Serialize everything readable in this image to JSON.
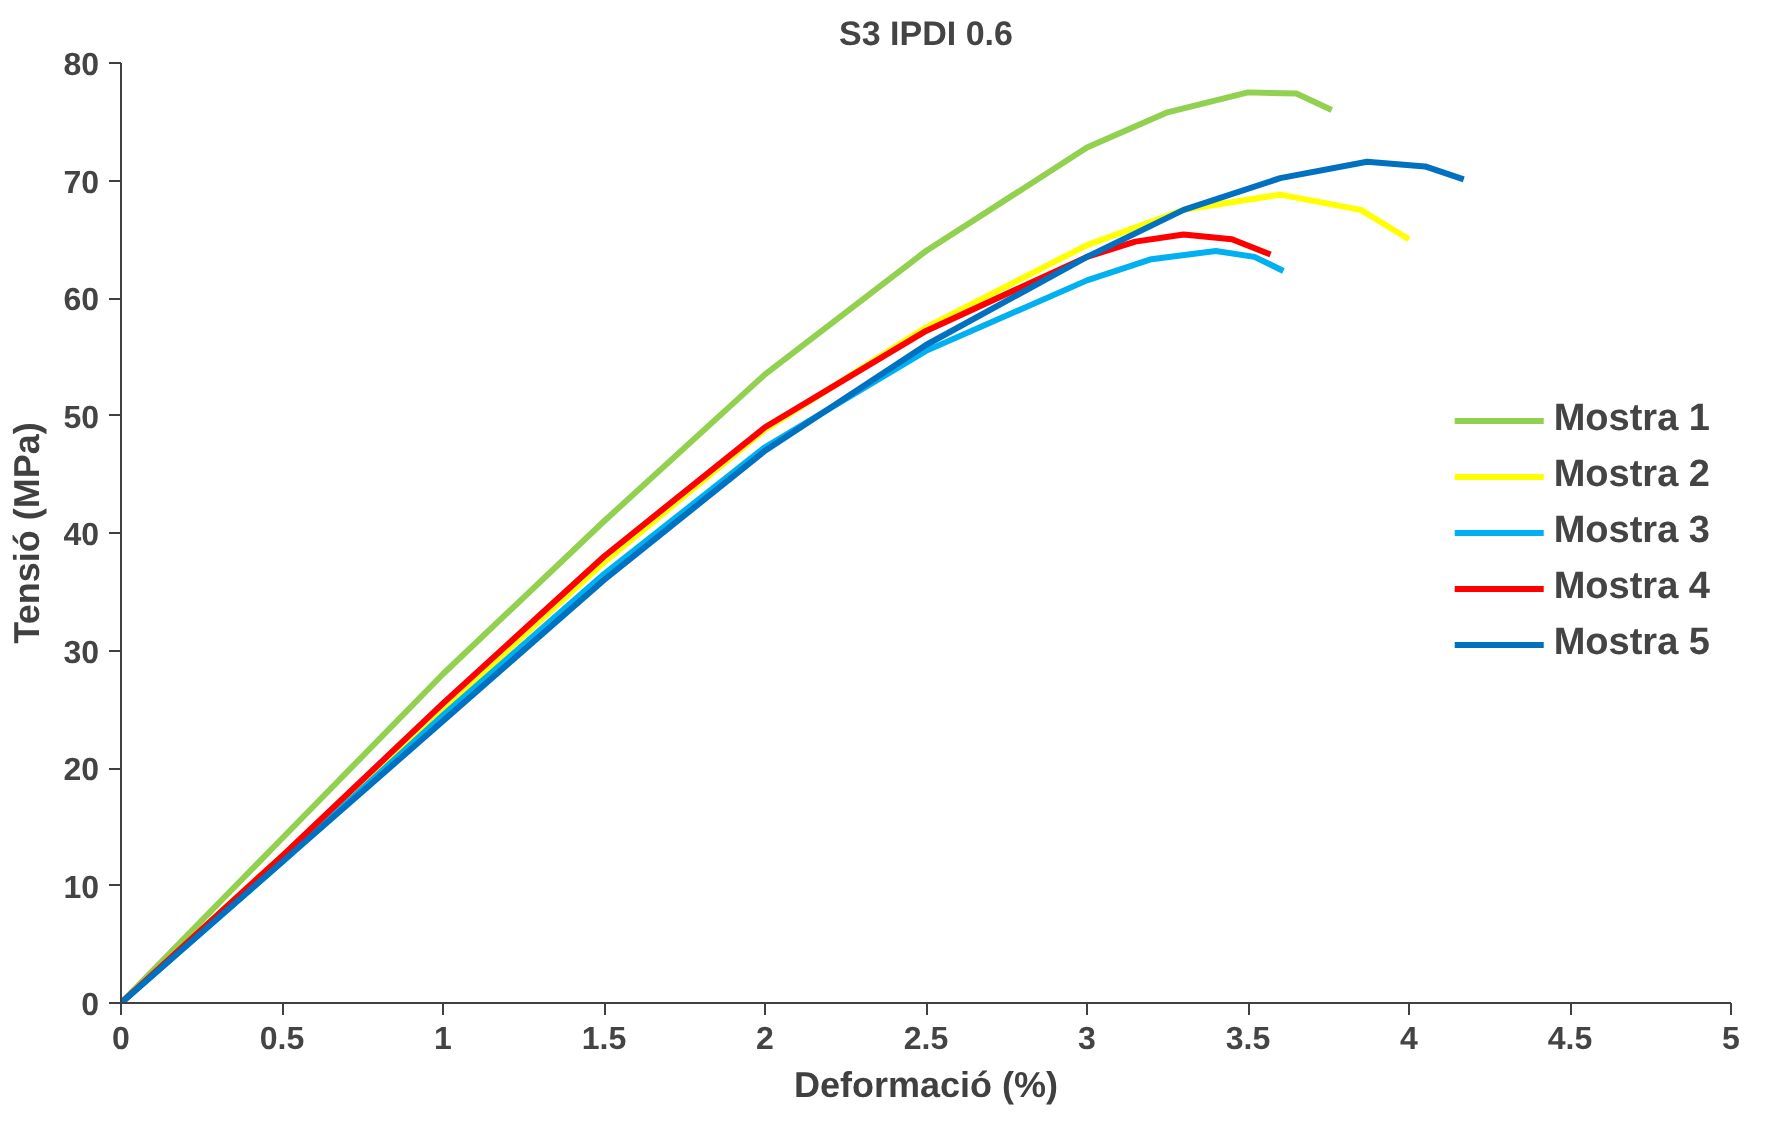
{
  "chart_data": {
    "type": "line",
    "title": "S3 IPDI 0.6",
    "xlabel": "Deformació (%)",
    "ylabel": "Tensió (MPa)",
    "xlim": [
      0,
      5
    ],
    "ylim": [
      0,
      80
    ],
    "xticks": [
      0,
      0.5,
      1,
      1.5,
      2,
      2.5,
      3,
      3.5,
      4,
      4.5,
      5
    ],
    "yticks": [
      0,
      10,
      20,
      30,
      40,
      50,
      60,
      70,
      80
    ],
    "grid": false,
    "legend": "right",
    "marker": "none",
    "line_style": "solid",
    "series": [
      {
        "name": "Mostra 1",
        "color": "#92d050",
        "x": [
          0,
          0.5,
          1,
          1.5,
          2,
          2.5,
          3,
          3.25,
          3.5,
          3.65,
          3.76
        ],
        "values": [
          0,
          14,
          28,
          41,
          53.5,
          64,
          72.8,
          75.8,
          77.5,
          77.4,
          76
        ]
      },
      {
        "name": "Mostra 2",
        "color": "#ffff00",
        "x": [
          0,
          0.5,
          1,
          1.5,
          2,
          2.5,
          3,
          3.3,
          3.6,
          3.85,
          4.0
        ],
        "values": [
          0,
          12.5,
          25,
          37.5,
          48.8,
          57.5,
          64.5,
          67.5,
          68.8,
          67.5,
          65
        ]
      },
      {
        "name": "Mostra 3",
        "color": "#00b0f0",
        "x": [
          0,
          0.5,
          1,
          1.5,
          2,
          2.5,
          3,
          3.2,
          3.4,
          3.52,
          3.61
        ],
        "values": [
          0,
          12,
          24.5,
          36.5,
          47.3,
          55.5,
          61.5,
          63.3,
          64,
          63.5,
          62.3
        ]
      },
      {
        "name": "Mostra 4",
        "color": "#ff0000",
        "x": [
          0,
          0.5,
          1,
          1.5,
          2,
          2.5,
          3,
          3.15,
          3.3,
          3.45,
          3.57
        ],
        "values": [
          0,
          12.5,
          25.5,
          38,
          49,
          57.2,
          63.5,
          64.8,
          65.4,
          65,
          63.7
        ]
      },
      {
        "name": "Mostra 5",
        "color": "#0070c0",
        "x": [
          0,
          0.5,
          1,
          1.5,
          2,
          2.5,
          3,
          3.3,
          3.6,
          3.87,
          4.05,
          4.17
        ],
        "values": [
          0,
          12,
          24,
          36,
          47,
          56,
          63.5,
          67.5,
          70.2,
          71.6,
          71.2,
          70.1
        ]
      }
    ]
  }
}
